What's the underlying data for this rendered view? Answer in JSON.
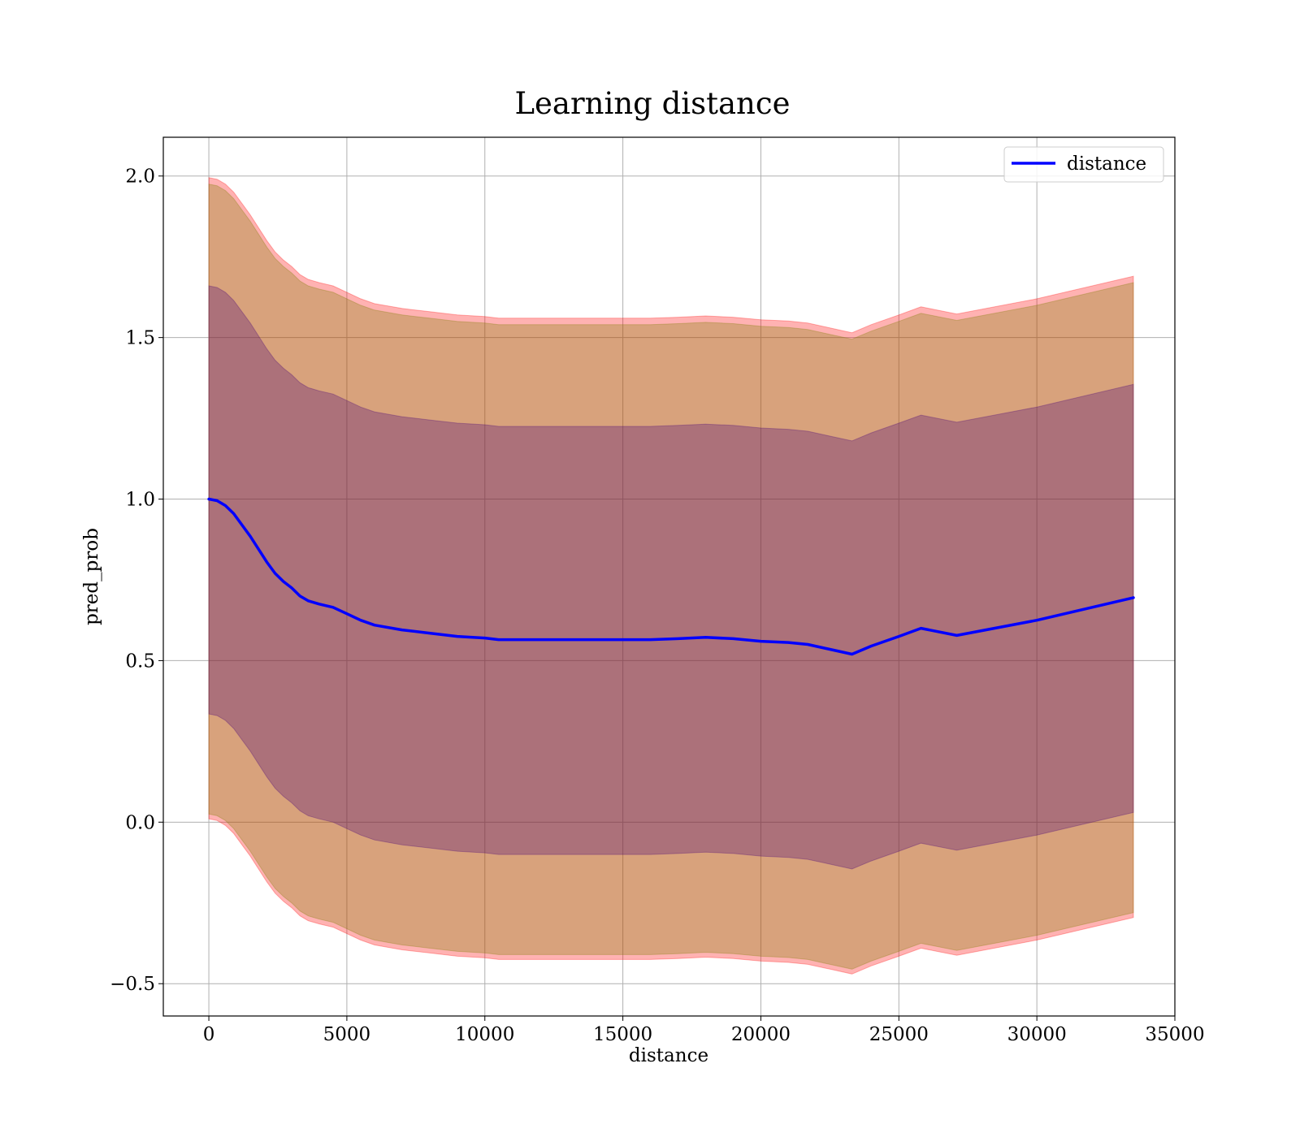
{
  "chart_data": {
    "type": "line",
    "title": "Learning distance",
    "xlabel": "distance",
    "ylabel": "pred_prob",
    "xlim": [
      -1650,
      35000
    ],
    "ylim": [
      -0.6,
      2.12
    ],
    "xticks": [
      0,
      5000,
      10000,
      15000,
      20000,
      25000,
      30000,
      35000
    ],
    "xtick_labels": [
      "0",
      "5000",
      "10000",
      "15000",
      "20000",
      "25000",
      "30000",
      "35000"
    ],
    "yticks": [
      -0.5,
      0.0,
      0.5,
      1.0,
      1.5,
      2.0
    ],
    "ytick_labels": [
      "−0.5",
      "0.0",
      "0.5",
      "1.0",
      "1.5",
      "2.0"
    ],
    "grid": true,
    "legend_position": "upper right",
    "x": [
      0,
      300,
      600,
      900,
      1200,
      1500,
      1800,
      2100,
      2400,
      2700,
      3000,
      3300,
      3600,
      4000,
      4500,
      5000,
      5500,
      6000,
      7000,
      8000,
      9000,
      10000,
      10500,
      11000,
      12000,
      13000,
      14000,
      15000,
      16000,
      17000,
      18000,
      19000,
      20000,
      21000,
      21700,
      22500,
      23300,
      24000,
      25000,
      25800,
      27100,
      30000,
      33500
    ],
    "series": [
      {
        "name": "distance",
        "color": "#0000ff",
        "values": [
          1.0,
          0.995,
          0.98,
          0.955,
          0.92,
          0.885,
          0.845,
          0.805,
          0.77,
          0.745,
          0.725,
          0.7,
          0.685,
          0.675,
          0.665,
          0.645,
          0.625,
          0.61,
          0.595,
          0.585,
          0.575,
          0.57,
          0.565,
          0.565,
          0.565,
          0.565,
          0.565,
          0.565,
          0.565,
          0.568,
          0.572,
          0.568,
          0.56,
          0.556,
          0.55,
          0.535,
          0.52,
          0.545,
          0.575,
          0.6,
          0.578,
          0.625,
          0.695
        ]
      }
    ],
    "bands": [
      {
        "color": "#ff0000",
        "opacity": 0.3,
        "offset_upper": 0.995,
        "offset_lower": 0.99
      },
      {
        "color": "#7f7f00",
        "opacity": 0.3,
        "offset_upper": 0.975,
        "offset_lower": 0.975
      },
      {
        "color": "#440077",
        "opacity": 0.3,
        "offset_upper": 0.66,
        "offset_lower": 0.665
      }
    ],
    "legend": [
      {
        "label": "distance",
        "color": "#0000ff"
      }
    ]
  }
}
